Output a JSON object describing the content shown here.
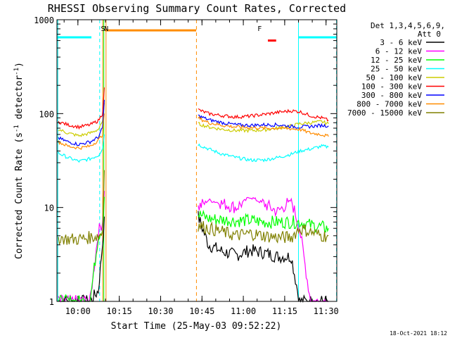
{
  "chart_data": {
    "type": "line",
    "title": "RHESSI Observing Summary Count Rates, Corrected",
    "xlabel": "Start Time (25-May-03 09:52:22)",
    "ylabel_parts": [
      "Corrected Count Rate (s",
      "-1",
      " detector",
      "-1",
      ")"
    ],
    "footer": "18-Oct-2021 18:12",
    "x_unit": "minutes after 09:52:22",
    "xlim": [
      0,
      101.5
    ],
    "ylim": [
      1,
      1000
    ],
    "yscale": "log",
    "grid": false,
    "x_ticks": [
      {
        "label": "10:00",
        "x": 7.6
      },
      {
        "label": "10:15",
        "x": 22.6
      },
      {
        "label": "10:30",
        "x": 37.6
      },
      {
        "label": "10:45",
        "x": 52.6
      },
      {
        "label": "11:00",
        "x": 67.6
      },
      {
        "label": "11:15",
        "x": 82.6
      },
      {
        "label": "11:30",
        "x": 97.6
      }
    ],
    "y_ticks": [
      {
        "label": "1",
        "y": 1
      },
      {
        "label": "10",
        "y": 10
      },
      {
        "label": "100",
        "y": 100
      },
      {
        "label": "1000",
        "y": 1000
      }
    ],
    "legend_header": [
      "Det 1,3,4,5,6,9,",
      "Att 0"
    ],
    "legend_placement": "right",
    "series": [
      {
        "name": "3 - 6 keV",
        "color": "#000000",
        "key": "s3_6"
      },
      {
        "name": "6 - 12 keV",
        "color": "#ff00ff",
        "key": "s6_12"
      },
      {
        "name": "12 - 25 keV",
        "color": "#00ff00",
        "key": "s12_25"
      },
      {
        "name": "25 - 50 keV",
        "color": "#00ffff",
        "key": "s25_50"
      },
      {
        "name": "50 - 100 keV",
        "color": "#cccc00",
        "key": "s50_100"
      },
      {
        "name": "100 - 300 keV",
        "color": "#ff0000",
        "key": "s100_300"
      },
      {
        "name": "300 - 800 keV",
        "color": "#0000ff",
        "key": "s300_800"
      },
      {
        "name": "800 - 7000 keV",
        "color": "#ff8c00",
        "key": "s800_7000"
      },
      {
        "name": "7000 - 15000 keV",
        "color": "#808000",
        "key": "s7000_15000"
      }
    ],
    "segments": [
      {
        "x": [
          0.5,
          4,
          8,
          12,
          15,
          16.5,
          17.2
        ],
        "values": {
          "s3_6": [
            1,
            1,
            1,
            1,
            1.3,
            4,
            8
          ],
          "s6_12": [
            1,
            1,
            1,
            1,
            5.5,
            7,
            15
          ],
          "s12_25": [
            1,
            1,
            1,
            1,
            5,
            6,
            13
          ],
          "s25_50": [
            38,
            34,
            31,
            33,
            36,
            42,
            60
          ],
          "s50_100": [
            68,
            62,
            58,
            62,
            68,
            80,
            130
          ],
          "s100_300": [
            82,
            76,
            72,
            76,
            84,
            100,
            190
          ],
          "s300_800": [
            55,
            50,
            47,
            50,
            56,
            70,
            140
          ],
          "s800_7000": [
            50,
            45,
            43,
            45,
            52,
            60,
            100
          ],
          "s7000_15000": [
            4.8,
            4.6,
            4.6,
            4.8,
            5,
            5.5,
            25
          ]
        }
      },
      {
        "x": [
          51.2,
          55,
          60,
          65,
          70,
          75,
          80,
          85,
          88,
          92,
          96,
          98.5
        ],
        "values": {
          "s3_6": [
            8,
            4,
            3.4,
            3.1,
            3.5,
            3.3,
            3,
            3,
            1,
            1,
            1,
            1
          ],
          "s6_12": [
            10,
            12,
            11,
            10,
            13,
            11,
            9,
            12,
            6,
            1,
            1,
            1
          ],
          "s12_25": [
            8.5,
            7.6,
            7.4,
            7.2,
            7.3,
            7,
            7,
            7,
            7,
            6.5,
            6.2,
            6
          ],
          "s25_50": [
            47,
            42,
            37,
            34,
            32,
            32,
            34,
            37,
            40,
            42,
            45,
            44
          ],
          "s50_100": [
            78,
            72,
            68,
            66,
            66,
            67,
            70,
            74,
            78,
            80,
            82,
            78
          ],
          "s100_300": [
            110,
            100,
            95,
            92,
            94,
            98,
            103,
            107,
            105,
            95,
            90,
            85
          ],
          "s300_800": [
            95,
            86,
            80,
            76,
            75,
            76,
            76,
            73,
            72,
            73,
            75,
            74
          ],
          "s800_7000": [
            90,
            80,
            75,
            72,
            71,
            70,
            70,
            69,
            68,
            62,
            60,
            57
          ],
          "s7000_15000": [
            6.5,
            6,
            5.5,
            5,
            5.3,
            5,
            4.8,
            4.8,
            6,
            5.5,
            5,
            5
          ]
        }
      }
    ],
    "markers": [
      {
        "label": "S",
        "x": 16.7,
        "color": "#ff8c00"
      },
      {
        "label": "N",
        "x": 17.9,
        "color": "#00ffff"
      },
      {
        "label": "F",
        "x": 73.5,
        "color": "#ff0000"
      }
    ],
    "intervals": [
      {
        "color": "#ff8c00",
        "x": [
          17.5,
          50.5
        ],
        "y": 770,
        "kind": "bar"
      },
      {
        "color": "#00ffff",
        "x": [
          0,
          12.5
        ],
        "y": 650,
        "kind": "bar"
      },
      {
        "color": "#00ffff",
        "x": [
          87.5,
          102
        ],
        "y": 650,
        "kind": "bar"
      },
      {
        "color": "#ff0000",
        "x": [
          76.5,
          79.5
        ],
        "y": 600,
        "kind": "bar"
      }
    ],
    "vlines": [
      {
        "x": 0.3,
        "color": "#00ffff",
        "style": "solid"
      },
      {
        "x": 15.5,
        "color": "#00ffff",
        "style": "dashed"
      },
      {
        "x": 16.6,
        "color": "#ff8c00",
        "style": "solid"
      },
      {
        "x": 17.0,
        "color": "#00ff00",
        "style": "solid"
      },
      {
        "x": 17.8,
        "color": "#ff8c00",
        "style": "solid"
      },
      {
        "x": 50.6,
        "color": "#ff8c00",
        "style": "dashed"
      },
      {
        "x": 87.6,
        "color": "#00ffff",
        "style": "solid"
      },
      {
        "x": 101.4,
        "color": "#00ffff",
        "style": "dashed"
      }
    ]
  }
}
